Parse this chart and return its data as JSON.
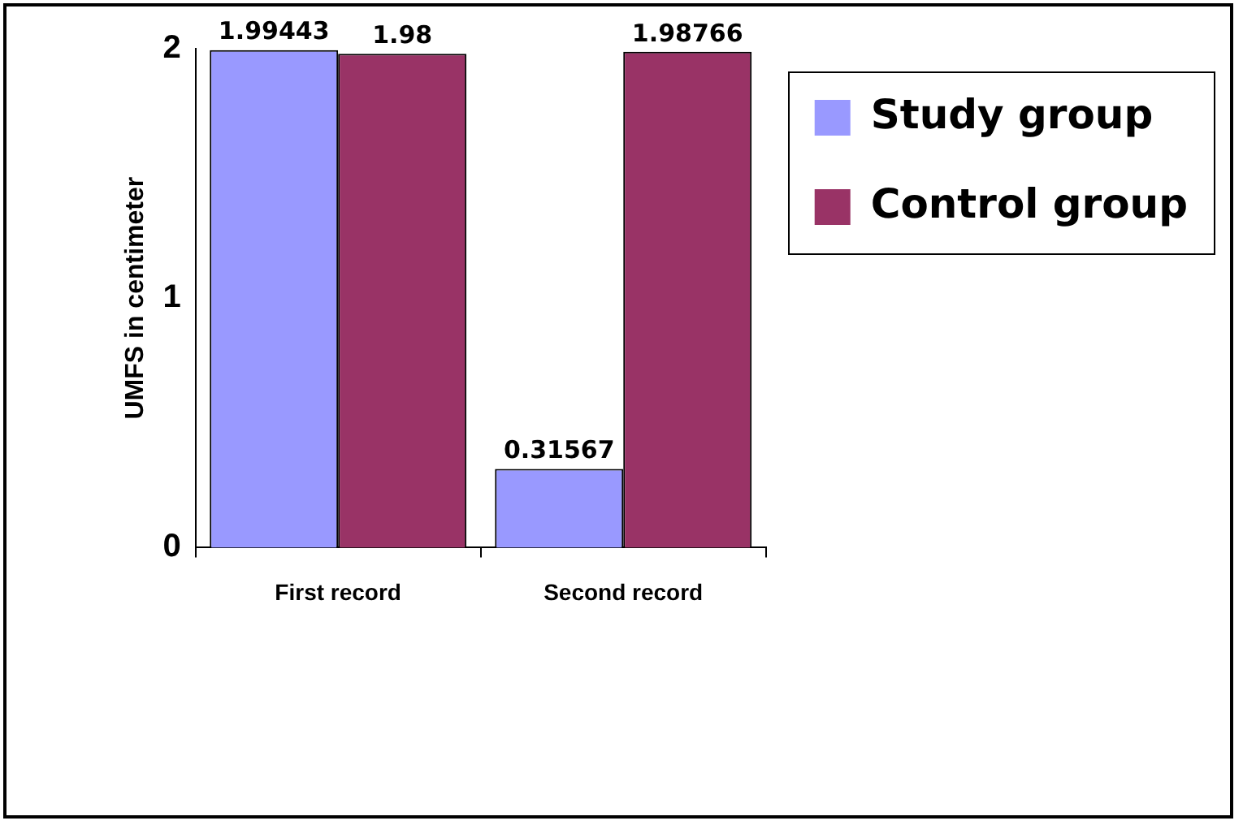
{
  "chart_data": {
    "type": "bar",
    "ylabel": "UMFS in centimeter",
    "categories": [
      "First record",
      "Second record"
    ],
    "series": [
      {
        "name": "Study group",
        "color": "#9999ff",
        "values": [
          1.99443,
          0.31567
        ]
      },
      {
        "name": "Control group",
        "color": "#993366",
        "values": [
          1.98,
          1.98766
        ]
      }
    ],
    "ylim": [
      0,
      2
    ],
    "yticks": [
      0,
      1,
      2
    ],
    "grid": false,
    "legend": "top right",
    "data_labels": true
  }
}
